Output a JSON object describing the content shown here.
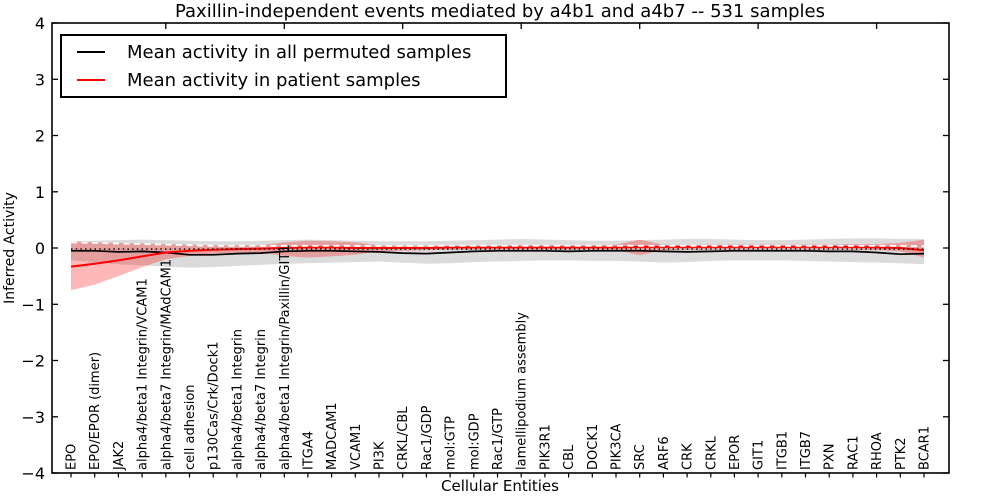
{
  "chart_data": {
    "type": "line",
    "title": "Paxillin-independent events mediated by a4b1 and a4b7 -- 531 samples",
    "xlabel": "Cellular Entities",
    "ylabel": "Inferred Activity",
    "ylim": [
      -4,
      4
    ],
    "ytick_values": [
      4,
      3,
      2,
      1,
      0,
      -1,
      -2,
      -3,
      -4
    ],
    "ytick_labels": [
      "4",
      "3",
      "2",
      "1",
      "0",
      "−1",
      "−2",
      "−3",
      "−4"
    ],
    "x_major_ticks": [
      5,
      10,
      15,
      20,
      25,
      30,
      35
    ],
    "grid": false,
    "legend_position": "upper left",
    "categories": [
      "EPO",
      "EPO/EPOR (dimer)",
      "JAK2",
      "alpha4/beta1 Integrin/VCAM1",
      "alpha4/beta7 Integrin/MAdCAM1",
      "cell adhesion",
      "p130Cas/Crk/Dock1",
      "alpha4/beta1 Integrin",
      "alpha4/beta7 Integrin",
      "alpha4/beta1 Integrin/Paxillin/GIT1",
      "ITGA4",
      "MADCAM1",
      "VCAM1",
      "PI3K",
      "CRKL/CBL",
      "Rac1/GDP",
      "mol:GTP",
      "mol:GDP",
      "Rac1/GTP",
      "lamellipodium assembly",
      "PIK3R1",
      "CBL",
      "DOCK1",
      "PIK3CA",
      "SRC",
      "ARF6",
      "CRK",
      "CRKL",
      "EPOR",
      "GIT1",
      "ITGB1",
      "ITGB7",
      "PXN",
      "RAC1",
      "RHOA",
      "PTK2",
      "BCAR1"
    ],
    "series": [
      {
        "name": "Mean activity in all permuted samples",
        "color": "#000000",
        "band_color": "rgba(0,0,0,0.14)",
        "values": [
          -0.05,
          -0.05,
          -0.07,
          -0.06,
          -0.08,
          -0.12,
          -0.12,
          -0.1,
          -0.09,
          -0.06,
          -0.05,
          -0.05,
          -0.06,
          -0.07,
          -0.09,
          -0.1,
          -0.08,
          -0.06,
          -0.05,
          -0.05,
          -0.05,
          -0.06,
          -0.05,
          -0.05,
          -0.05,
          -0.06,
          -0.07,
          -0.06,
          -0.05,
          -0.05,
          -0.05,
          -0.05,
          -0.06,
          -0.06,
          -0.08,
          -0.11,
          -0.1
        ],
        "band_upper": [
          0.12,
          0.13,
          0.14,
          0.15,
          0.14,
          0.13,
          0.12,
          0.12,
          0.13,
          0.14,
          0.15,
          0.14,
          0.13,
          0.12,
          0.12,
          0.12,
          0.13,
          0.14,
          0.15,
          0.16,
          0.15,
          0.14,
          0.13,
          0.13,
          0.14,
          0.15,
          0.16,
          0.16,
          0.15,
          0.14,
          0.14,
          0.15,
          0.16,
          0.17,
          0.17,
          0.16,
          0.16
        ],
        "band_lower": [
          -0.22,
          -0.25,
          -0.29,
          -0.31,
          -0.33,
          -0.35,
          -0.34,
          -0.32,
          -0.3,
          -0.28,
          -0.27,
          -0.26,
          -0.25,
          -0.24,
          -0.26,
          -0.28,
          -0.27,
          -0.25,
          -0.24,
          -0.23,
          -0.22,
          -0.22,
          -0.23,
          -0.23,
          -0.24,
          -0.26,
          -0.25,
          -0.23,
          -0.22,
          -0.22,
          -0.22,
          -0.23,
          -0.24,
          -0.25,
          -0.26,
          -0.27,
          -0.29
        ]
      },
      {
        "name": "Mean activity in patient samples",
        "color": "#ff0000",
        "band_color": "rgba(255,0,0,0.28)",
        "values": [
          -0.33,
          -0.28,
          -0.22,
          -0.15,
          -0.08,
          -0.05,
          -0.03,
          -0.02,
          -0.01,
          0.0,
          0.01,
          0.01,
          0.0,
          0.0,
          0.0,
          0.0,
          0.01,
          0.01,
          0.01,
          0.01,
          0.01,
          0.01,
          0.01,
          0.01,
          0.02,
          0.02,
          0.02,
          0.02,
          0.02,
          0.02,
          0.02,
          0.02,
          0.02,
          0.02,
          0.01,
          0.0,
          -0.04
        ],
        "band_upper": [
          0.12,
          0.1,
          0.09,
          0.08,
          0.07,
          0.06,
          0.05,
          0.05,
          0.05,
          0.1,
          0.13,
          0.12,
          0.1,
          0.05,
          0.04,
          0.04,
          0.04,
          0.04,
          0.04,
          0.05,
          0.05,
          0.05,
          0.05,
          0.06,
          0.15,
          0.06,
          0.05,
          0.06,
          0.06,
          0.06,
          0.06,
          0.06,
          0.06,
          0.07,
          0.07,
          0.09,
          0.15
        ],
        "band_lower": [
          -0.75,
          -0.65,
          -0.5,
          -0.34,
          -0.2,
          -0.14,
          -0.1,
          -0.08,
          -0.08,
          -0.14,
          -0.17,
          -0.15,
          -0.12,
          -0.06,
          -0.05,
          -0.04,
          -0.03,
          -0.03,
          -0.03,
          -0.03,
          -0.03,
          -0.03,
          -0.03,
          -0.04,
          -0.13,
          -0.04,
          -0.03,
          -0.03,
          -0.03,
          -0.03,
          -0.03,
          -0.03,
          -0.03,
          -0.03,
          -0.04,
          -0.06,
          -0.17
        ]
      }
    ],
    "reference_lines": [
      {
        "name": "black-dotted-line",
        "color": "#000000",
        "style": "dotted",
        "values": [
          -0.02,
          -0.02,
          -0.02,
          -0.02,
          -0.02,
          -0.02,
          -0.02,
          -0.02,
          -0.02,
          -0.02,
          -0.02,
          -0.02,
          -0.02,
          -0.02,
          -0.02,
          -0.02,
          -0.02,
          -0.02,
          -0.02,
          -0.02,
          -0.02,
          -0.02,
          -0.02,
          -0.02,
          -0.02,
          -0.02,
          -0.02,
          -0.02,
          -0.02,
          -0.02,
          -0.02,
          -0.02,
          -0.02,
          -0.02,
          -0.02,
          -0.02,
          -0.02
        ]
      },
      {
        "name": "white-dashed-line",
        "color": "#ffffff",
        "style": "dashed",
        "values": [
          0.1,
          0.09,
          0.08,
          0.07,
          0.06,
          0.05,
          0.04,
          0.04,
          0.04,
          0.04,
          0.04,
          0.04,
          0.04,
          0.04,
          0.04,
          0.04,
          0.04,
          0.04,
          0.04,
          0.04,
          0.04,
          0.04,
          0.04,
          0.04,
          0.04,
          0.04,
          0.04,
          0.04,
          0.04,
          0.04,
          0.04,
          0.04,
          0.04,
          0.04,
          0.04,
          0.04,
          0.03
        ]
      }
    ]
  }
}
